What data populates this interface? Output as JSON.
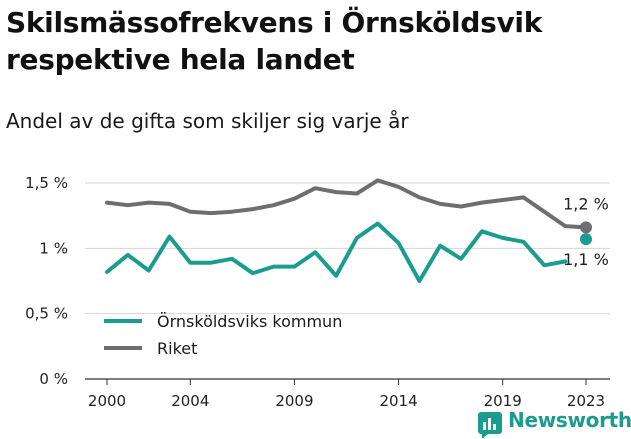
{
  "title": "Skilsmässofrekvens i Örnsköldsvik respektive hela landet",
  "subtitle": "Andel av de gifta som skiljer sig varje år",
  "brand": {
    "name": "Newsworthy",
    "color": "#1a9c8e"
  },
  "chart_data": {
    "type": "line",
    "x": [
      2000,
      2001,
      2002,
      2003,
      2004,
      2005,
      2006,
      2007,
      2008,
      2009,
      2010,
      2011,
      2012,
      2013,
      2014,
      2015,
      2016,
      2017,
      2018,
      2019,
      2020,
      2021,
      2022,
      2023
    ],
    "x_ticks": [
      2000,
      2004,
      2009,
      2014,
      2019,
      2023
    ],
    "y_ticks": [
      {
        "value": 0,
        "label": "0 %"
      },
      {
        "value": 0.5,
        "label": "0,5 %"
      },
      {
        "value": 1,
        "label": "1 %"
      },
      {
        "value": 1.5,
        "label": "1,5 %"
      }
    ],
    "ylim": [
      0,
      1.5
    ],
    "grid": "horizontal",
    "legend_position": "bottom-left",
    "series": [
      {
        "name": "Örnsköldsviks kommun",
        "color": "#1a9c8e",
        "values": [
          0.82,
          0.95,
          0.83,
          1.09,
          0.89,
          0.89,
          0.92,
          0.81,
          0.86,
          0.86,
          0.97,
          0.79,
          1.08,
          1.19,
          1.04,
          0.75,
          1.02,
          0.92,
          1.13,
          1.08,
          1.05,
          0.87,
          0.9,
          1.07
        ],
        "gaps_before": [
          2023
        ],
        "end_label": "1,1 %"
      },
      {
        "name": "Riket",
        "color": "#6e6e70",
        "values": [
          1.35,
          1.33,
          1.35,
          1.34,
          1.28,
          1.27,
          1.28,
          1.3,
          1.33,
          1.38,
          1.46,
          1.43,
          1.42,
          1.52,
          1.47,
          1.39,
          1.34,
          1.32,
          1.35,
          1.37,
          1.39,
          1.28,
          1.17,
          1.16
        ],
        "end_label": "1,2 %"
      }
    ]
  }
}
